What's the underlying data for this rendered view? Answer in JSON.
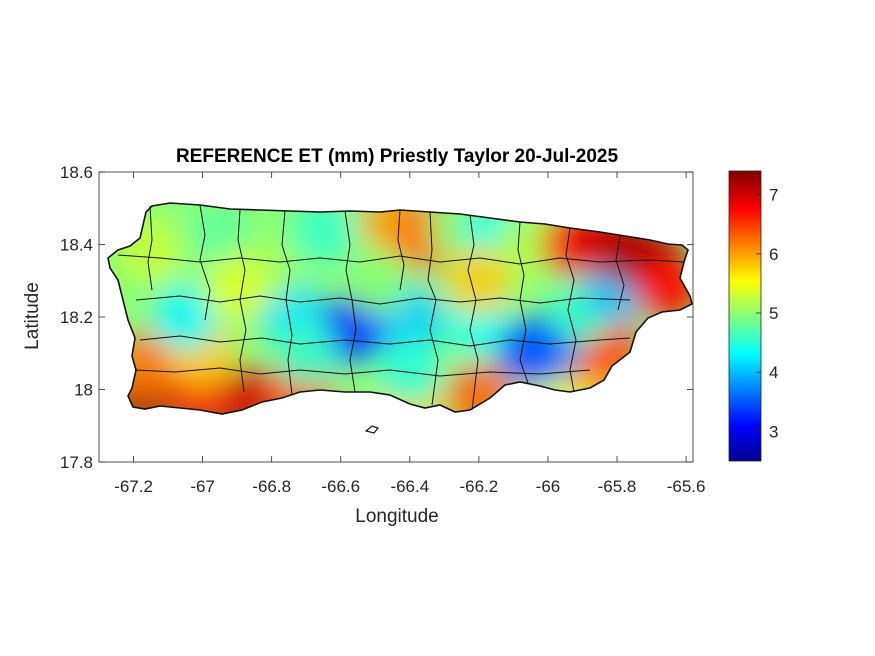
{
  "chart_data": {
    "type": "heatmap",
    "title": "REFERENCE ET (mm) Priestly Taylor 20-Jul-2025",
    "xlabel": "Longitude",
    "ylabel": "Latitude",
    "xlim": [
      -67.3,
      -65.58
    ],
    "ylim": [
      17.8,
      18.6
    ],
    "x_ticks": [
      -67.2,
      -67,
      -66.8,
      -66.6,
      -66.4,
      -66.2,
      -66,
      -65.8,
      -65.6
    ],
    "x_tick_labels": [
      "-67.2",
      "-67",
      "-66.8",
      "-66.6",
      "-66.4",
      "-66.2",
      "-66",
      "-65.8",
      "-65.6"
    ],
    "y_ticks": [
      17.8,
      18,
      18.2,
      18.4,
      18.6
    ],
    "y_tick_labels": [
      "17.8",
      "18",
      "18.2",
      "18.4",
      "18.6"
    ],
    "colorbar": {
      "range": [
        2.5,
        7.4
      ],
      "ticks": [
        3,
        4,
        5,
        6,
        7
      ],
      "tick_labels": [
        "3",
        "4",
        "5",
        "6",
        "7"
      ],
      "colormap": "jet"
    },
    "field_points": [
      {
        "lon": -67.18,
        "lat": 17.97,
        "value": 7.2
      },
      {
        "lon": -67.0,
        "lat": 17.98,
        "value": 6.8
      },
      {
        "lon": -66.85,
        "lat": 17.97,
        "value": 7.0
      },
      {
        "lon": -67.17,
        "lat": 18.07,
        "value": 6.2
      },
      {
        "lon": -67.0,
        "lat": 18.1,
        "value": 5.8
      },
      {
        "lon": -66.72,
        "lat": 18.0,
        "value": 6.4
      },
      {
        "lon": -66.4,
        "lat": 17.98,
        "value": 5.8
      },
      {
        "lon": -66.2,
        "lat": 17.98,
        "value": 6.3
      },
      {
        "lon": -66.0,
        "lat": 18.0,
        "value": 5.4
      },
      {
        "lon": -65.85,
        "lat": 18.05,
        "value": 5.9
      },
      {
        "lon": -65.83,
        "lat": 18.12,
        "value": 6.5
      },
      {
        "lon": -66.6,
        "lat": 18.15,
        "value": 3.8
      },
      {
        "lon": -66.55,
        "lat": 18.18,
        "value": 3.1
      },
      {
        "lon": -66.75,
        "lat": 18.22,
        "value": 4.2
      },
      {
        "lon": -66.4,
        "lat": 18.2,
        "value": 4.1
      },
      {
        "lon": -66.2,
        "lat": 18.18,
        "value": 4.4
      },
      {
        "lon": -66.0,
        "lat": 18.12,
        "value": 3.8
      },
      {
        "lon": -66.05,
        "lat": 18.1,
        "value": 3.5
      },
      {
        "lon": -65.9,
        "lat": 18.22,
        "value": 4.6
      },
      {
        "lon": -65.8,
        "lat": 18.28,
        "value": 4.0
      },
      {
        "lon": -67.05,
        "lat": 18.2,
        "value": 4.3
      },
      {
        "lon": -67.15,
        "lat": 18.38,
        "value": 5.3
      },
      {
        "lon": -66.95,
        "lat": 18.42,
        "value": 4.8
      },
      {
        "lon": -66.8,
        "lat": 18.35,
        "value": 5.1
      },
      {
        "lon": -66.65,
        "lat": 18.44,
        "value": 4.6
      },
      {
        "lon": -66.45,
        "lat": 18.46,
        "value": 6.0
      },
      {
        "lon": -66.35,
        "lat": 18.42,
        "value": 6.3
      },
      {
        "lon": -66.25,
        "lat": 18.44,
        "value": 5.0
      },
      {
        "lon": -66.15,
        "lat": 18.42,
        "value": 4.4
      },
      {
        "lon": -66.05,
        "lat": 18.4,
        "value": 5.2
      },
      {
        "lon": -66.2,
        "lat": 18.3,
        "value": 5.8
      },
      {
        "lon": -65.92,
        "lat": 18.4,
        "value": 6.8
      },
      {
        "lon": -65.8,
        "lat": 18.4,
        "value": 7.1
      },
      {
        "lon": -65.7,
        "lat": 18.35,
        "value": 7.2
      },
      {
        "lon": -65.65,
        "lat": 18.28,
        "value": 6.7
      },
      {
        "lon": -66.5,
        "lat": 18.3,
        "value": 5.0
      },
      {
        "lon": -66.9,
        "lat": 18.28,
        "value": 5.4
      },
      {
        "lon": -66.4,
        "lat": 18.05,
        "value": 4.5
      },
      {
        "lon": -66.7,
        "lat": 18.1,
        "value": 4.6
      }
    ]
  }
}
